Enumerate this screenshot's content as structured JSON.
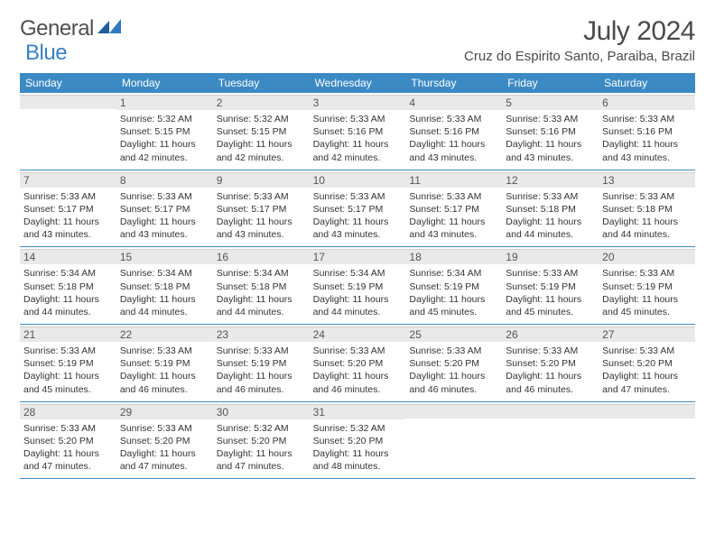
{
  "brand": {
    "part1": "General",
    "part2": "Blue"
  },
  "title": "July 2024",
  "location": "Cruz do Espirito Santo, Paraiba, Brazil",
  "header_bg": "#3b8ac4",
  "daynum_bg": "#e9e9e9",
  "accent": "#3b8ac4",
  "days": [
    "Sunday",
    "Monday",
    "Tuesday",
    "Wednesday",
    "Thursday",
    "Friday",
    "Saturday"
  ],
  "weeks": [
    [
      {
        "n": "",
        "sr": "",
        "ss": "",
        "dl1": "",
        "dl2": ""
      },
      {
        "n": "1",
        "sr": "Sunrise: 5:32 AM",
        "ss": "Sunset: 5:15 PM",
        "dl1": "Daylight: 11 hours",
        "dl2": "and 42 minutes."
      },
      {
        "n": "2",
        "sr": "Sunrise: 5:32 AM",
        "ss": "Sunset: 5:15 PM",
        "dl1": "Daylight: 11 hours",
        "dl2": "and 42 minutes."
      },
      {
        "n": "3",
        "sr": "Sunrise: 5:33 AM",
        "ss": "Sunset: 5:16 PM",
        "dl1": "Daylight: 11 hours",
        "dl2": "and 42 minutes."
      },
      {
        "n": "4",
        "sr": "Sunrise: 5:33 AM",
        "ss": "Sunset: 5:16 PM",
        "dl1": "Daylight: 11 hours",
        "dl2": "and 43 minutes."
      },
      {
        "n": "5",
        "sr": "Sunrise: 5:33 AM",
        "ss": "Sunset: 5:16 PM",
        "dl1": "Daylight: 11 hours",
        "dl2": "and 43 minutes."
      },
      {
        "n": "6",
        "sr": "Sunrise: 5:33 AM",
        "ss": "Sunset: 5:16 PM",
        "dl1": "Daylight: 11 hours",
        "dl2": "and 43 minutes."
      }
    ],
    [
      {
        "n": "7",
        "sr": "Sunrise: 5:33 AM",
        "ss": "Sunset: 5:17 PM",
        "dl1": "Daylight: 11 hours",
        "dl2": "and 43 minutes."
      },
      {
        "n": "8",
        "sr": "Sunrise: 5:33 AM",
        "ss": "Sunset: 5:17 PM",
        "dl1": "Daylight: 11 hours",
        "dl2": "and 43 minutes."
      },
      {
        "n": "9",
        "sr": "Sunrise: 5:33 AM",
        "ss": "Sunset: 5:17 PM",
        "dl1": "Daylight: 11 hours",
        "dl2": "and 43 minutes."
      },
      {
        "n": "10",
        "sr": "Sunrise: 5:33 AM",
        "ss": "Sunset: 5:17 PM",
        "dl1": "Daylight: 11 hours",
        "dl2": "and 43 minutes."
      },
      {
        "n": "11",
        "sr": "Sunrise: 5:33 AM",
        "ss": "Sunset: 5:17 PM",
        "dl1": "Daylight: 11 hours",
        "dl2": "and 43 minutes."
      },
      {
        "n": "12",
        "sr": "Sunrise: 5:33 AM",
        "ss": "Sunset: 5:18 PM",
        "dl1": "Daylight: 11 hours",
        "dl2": "and 44 minutes."
      },
      {
        "n": "13",
        "sr": "Sunrise: 5:33 AM",
        "ss": "Sunset: 5:18 PM",
        "dl1": "Daylight: 11 hours",
        "dl2": "and 44 minutes."
      }
    ],
    [
      {
        "n": "14",
        "sr": "Sunrise: 5:34 AM",
        "ss": "Sunset: 5:18 PM",
        "dl1": "Daylight: 11 hours",
        "dl2": "and 44 minutes."
      },
      {
        "n": "15",
        "sr": "Sunrise: 5:34 AM",
        "ss": "Sunset: 5:18 PM",
        "dl1": "Daylight: 11 hours",
        "dl2": "and 44 minutes."
      },
      {
        "n": "16",
        "sr": "Sunrise: 5:34 AM",
        "ss": "Sunset: 5:18 PM",
        "dl1": "Daylight: 11 hours",
        "dl2": "and 44 minutes."
      },
      {
        "n": "17",
        "sr": "Sunrise: 5:34 AM",
        "ss": "Sunset: 5:19 PM",
        "dl1": "Daylight: 11 hours",
        "dl2": "and 44 minutes."
      },
      {
        "n": "18",
        "sr": "Sunrise: 5:34 AM",
        "ss": "Sunset: 5:19 PM",
        "dl1": "Daylight: 11 hours",
        "dl2": "and 45 minutes."
      },
      {
        "n": "19",
        "sr": "Sunrise: 5:33 AM",
        "ss": "Sunset: 5:19 PM",
        "dl1": "Daylight: 11 hours",
        "dl2": "and 45 minutes."
      },
      {
        "n": "20",
        "sr": "Sunrise: 5:33 AM",
        "ss": "Sunset: 5:19 PM",
        "dl1": "Daylight: 11 hours",
        "dl2": "and 45 minutes."
      }
    ],
    [
      {
        "n": "21",
        "sr": "Sunrise: 5:33 AM",
        "ss": "Sunset: 5:19 PM",
        "dl1": "Daylight: 11 hours",
        "dl2": "and 45 minutes."
      },
      {
        "n": "22",
        "sr": "Sunrise: 5:33 AM",
        "ss": "Sunset: 5:19 PM",
        "dl1": "Daylight: 11 hours",
        "dl2": "and 46 minutes."
      },
      {
        "n": "23",
        "sr": "Sunrise: 5:33 AM",
        "ss": "Sunset: 5:19 PM",
        "dl1": "Daylight: 11 hours",
        "dl2": "and 46 minutes."
      },
      {
        "n": "24",
        "sr": "Sunrise: 5:33 AM",
        "ss": "Sunset: 5:20 PM",
        "dl1": "Daylight: 11 hours",
        "dl2": "and 46 minutes."
      },
      {
        "n": "25",
        "sr": "Sunrise: 5:33 AM",
        "ss": "Sunset: 5:20 PM",
        "dl1": "Daylight: 11 hours",
        "dl2": "and 46 minutes."
      },
      {
        "n": "26",
        "sr": "Sunrise: 5:33 AM",
        "ss": "Sunset: 5:20 PM",
        "dl1": "Daylight: 11 hours",
        "dl2": "and 46 minutes."
      },
      {
        "n": "27",
        "sr": "Sunrise: 5:33 AM",
        "ss": "Sunset: 5:20 PM",
        "dl1": "Daylight: 11 hours",
        "dl2": "and 47 minutes."
      }
    ],
    [
      {
        "n": "28",
        "sr": "Sunrise: 5:33 AM",
        "ss": "Sunset: 5:20 PM",
        "dl1": "Daylight: 11 hours",
        "dl2": "and 47 minutes."
      },
      {
        "n": "29",
        "sr": "Sunrise: 5:33 AM",
        "ss": "Sunset: 5:20 PM",
        "dl1": "Daylight: 11 hours",
        "dl2": "and 47 minutes."
      },
      {
        "n": "30",
        "sr": "Sunrise: 5:32 AM",
        "ss": "Sunset: 5:20 PM",
        "dl1": "Daylight: 11 hours",
        "dl2": "and 47 minutes."
      },
      {
        "n": "31",
        "sr": "Sunrise: 5:32 AM",
        "ss": "Sunset: 5:20 PM",
        "dl1": "Daylight: 11 hours",
        "dl2": "and 48 minutes."
      },
      {
        "n": "",
        "sr": "",
        "ss": "",
        "dl1": "",
        "dl2": ""
      },
      {
        "n": "",
        "sr": "",
        "ss": "",
        "dl1": "",
        "dl2": ""
      },
      {
        "n": "",
        "sr": "",
        "ss": "",
        "dl1": "",
        "dl2": ""
      }
    ]
  ]
}
